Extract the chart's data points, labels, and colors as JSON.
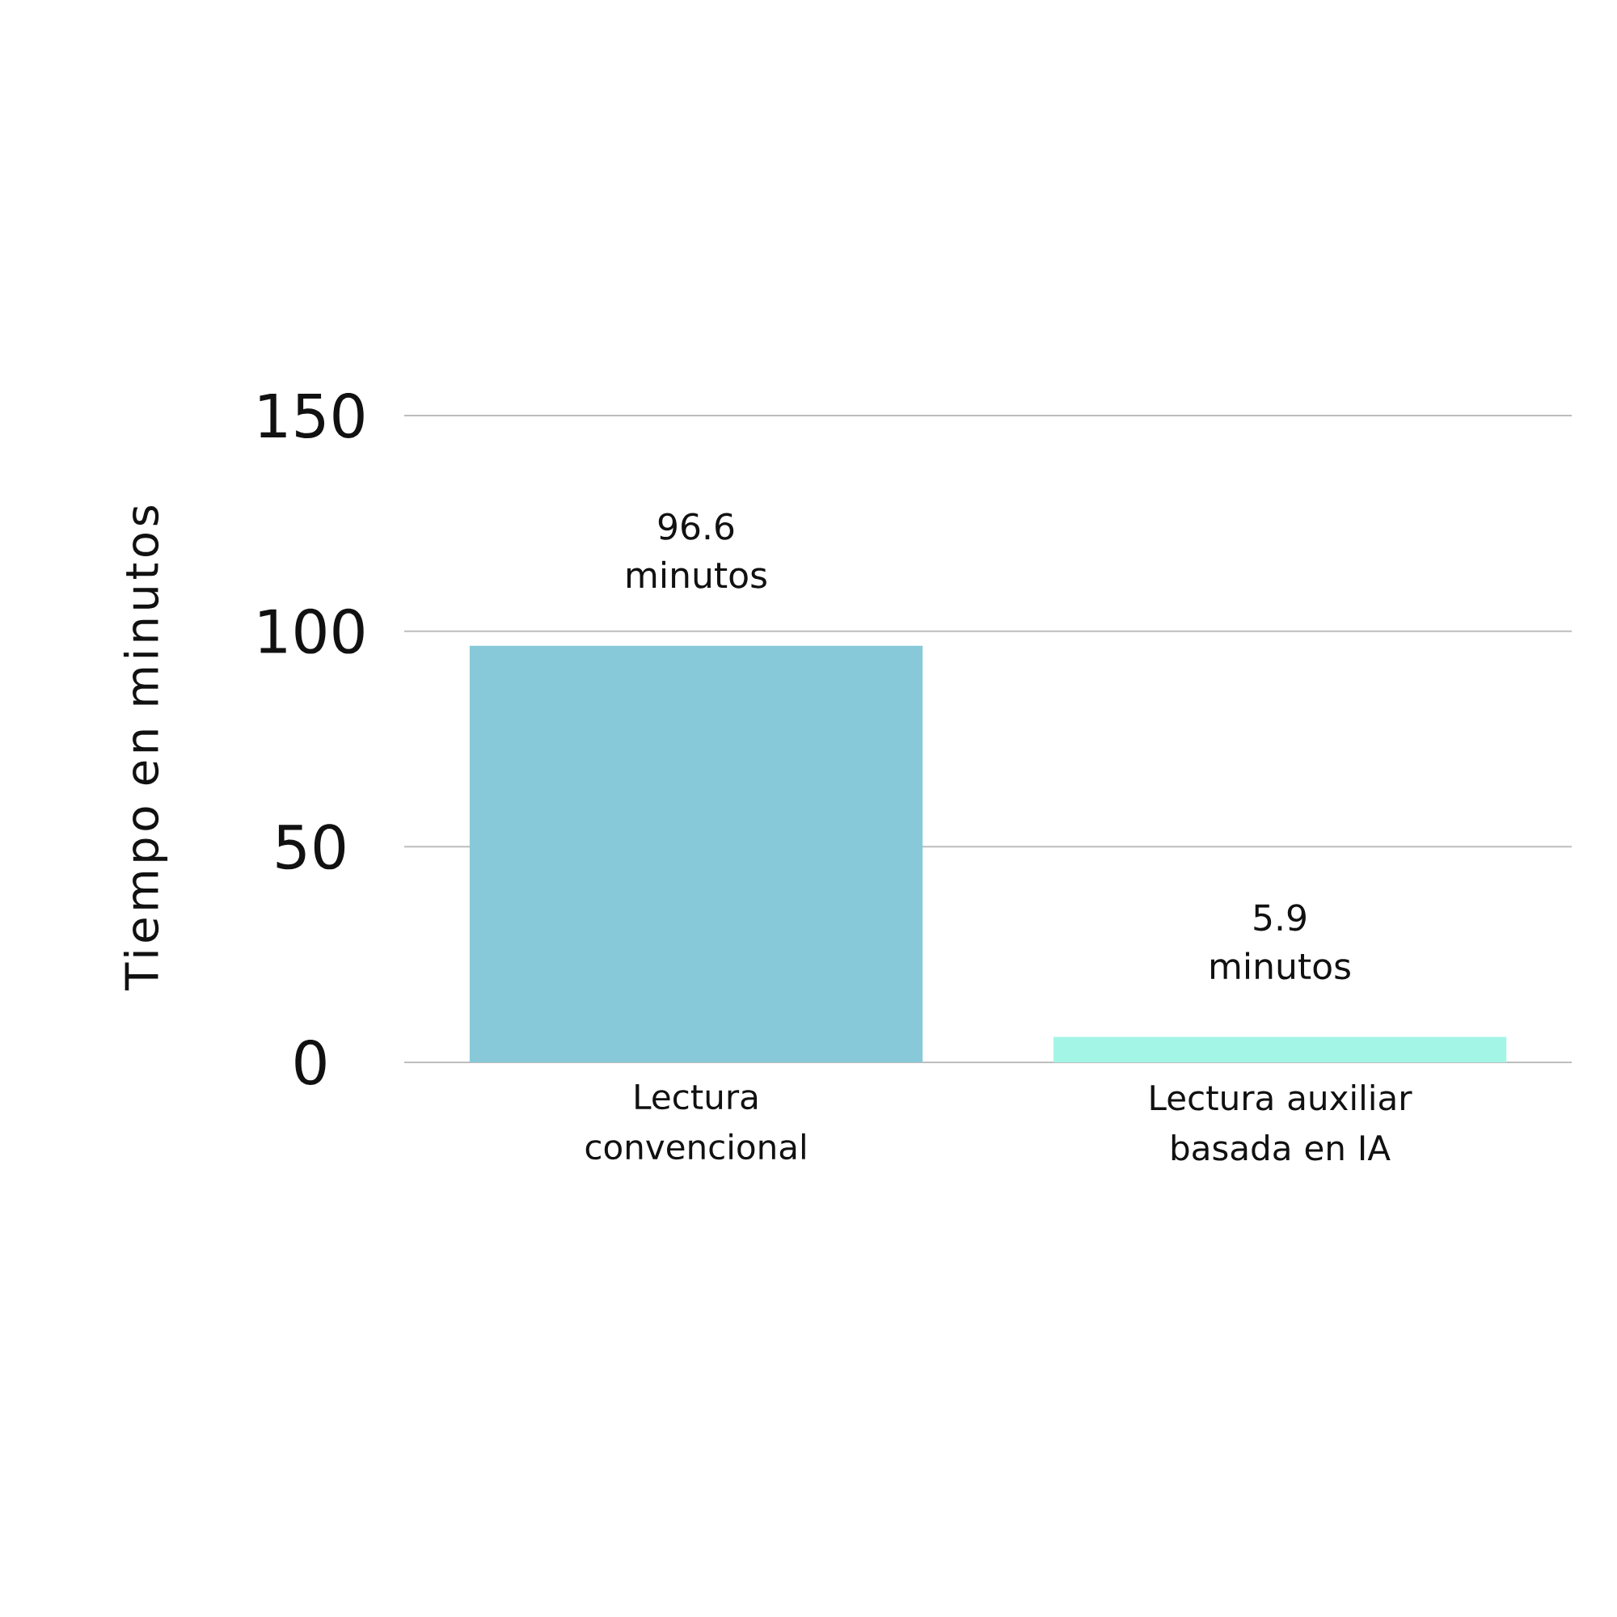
{
  "chart_data": {
    "type": "bar",
    "ylabel": "Tiempo en minutos",
    "categories": [
      "Lectura convencional",
      "Lectura auxiliar basada en IA"
    ],
    "values": [
      96.6,
      5.9
    ],
    "colors": [
      "#88c9d9",
      "#a3f5e6"
    ],
    "value_labels": [
      "96.6 minutos",
      "5.9 minutos"
    ],
    "ylim": [
      0,
      150
    ],
    "yticks": [
      0,
      50,
      100,
      150
    ],
    "grid": "y"
  }
}
